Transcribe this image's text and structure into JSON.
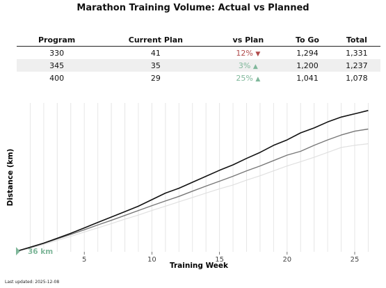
{
  "title": "Marathon Training Volume: Actual vs Planned",
  "footer": "Last updated: 2025-12-08",
  "table": {
    "headers": [
      "Program",
      "Current Plan",
      "vs Plan",
      "To Go",
      "Total"
    ],
    "rows": [
      {
        "program": "330",
        "current": "41",
        "vs_plan": "12%",
        "direction": "down",
        "to_go": "1,294",
        "total": "1,331"
      },
      {
        "program": "345",
        "current": "35",
        "vs_plan": "3%",
        "direction": "up",
        "to_go": "1,200",
        "total": "1,237"
      },
      {
        "program": "400",
        "current": "29",
        "vs_plan": "25%",
        "direction": "up",
        "to_go": "1,041",
        "total": "1,078"
      }
    ]
  },
  "colors": {
    "series_330": "#111111",
    "series_345": "#777777",
    "series_400": "#e0e0e0",
    "negative": "#b04a4a",
    "positive": "#7fb79a",
    "grid": "#e6e6e6"
  },
  "chart_data": {
    "type": "line",
    "title": "",
    "xlabel": "Training Week",
    "ylabel": "Distance (km)",
    "xlim": [
      0,
      26.8
    ],
    "ylim": [
      30,
      1400
    ],
    "x_ticks": [
      5,
      10,
      15,
      20,
      25
    ],
    "y_ticks_shown": false,
    "grid": "vertical, one line per week",
    "annotation": {
      "label": "36 km",
      "x": 0,
      "y": 36
    },
    "x": [
      0,
      1,
      2,
      3,
      4,
      5,
      6,
      7,
      8,
      9,
      10,
      11,
      12,
      13,
      14,
      15,
      16,
      17,
      18,
      19,
      20,
      21,
      22,
      23,
      24,
      25,
      26
    ],
    "series": [
      {
        "name": "330",
        "values": [
          36,
          72,
          110,
          155,
          200,
          250,
          300,
          350,
          400,
          450,
          510,
          570,
          615,
          670,
          725,
          780,
          830,
          890,
          945,
          1010,
          1060,
          1125,
          1170,
          1225,
          1270,
          1300,
          1331
        ]
      },
      {
        "name": "345",
        "values": [
          36,
          70,
          108,
          150,
          190,
          233,
          277,
          320,
          365,
          410,
          455,
          498,
          540,
          588,
          635,
          680,
          725,
          775,
          820,
          870,
          920,
          955,
          1010,
          1060,
          1105,
          1140,
          1160
        ]
      },
      {
        "name": "400",
        "values": [
          36,
          62,
          98,
          135,
          172,
          212,
          250,
          290,
          330,
          368,
          410,
          450,
          490,
          530,
          570,
          610,
          645,
          690,
          730,
          775,
          820,
          860,
          900,
          945,
          990,
          1010,
          1025
        ]
      }
    ]
  }
}
